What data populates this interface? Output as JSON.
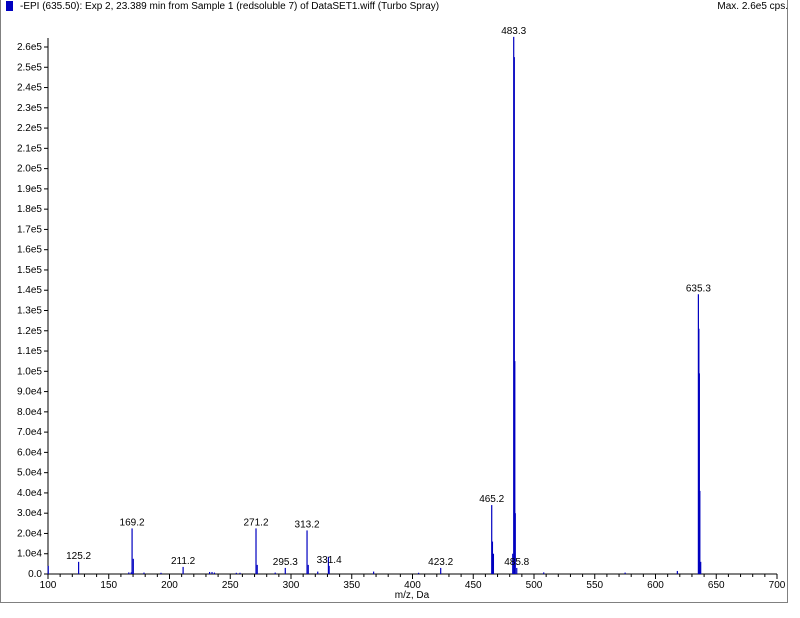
{
  "header": {
    "title": "-EPI (635.50): Exp 2, 23.389 min from Sample 1 (redsoluble 7) of DataSET1.wiff (Turbo Spray)",
    "max_label": "Max. 2.6e5 cps.",
    "series_color": "#0000c0"
  },
  "chart_data": {
    "type": "bar",
    "xlabel": "m/z, Da",
    "ylabel": "",
    "xlim": [
      100,
      700
    ],
    "ylim": [
      0,
      260000
    ],
    "xticks": [
      100,
      150,
      200,
      250,
      300,
      350,
      400,
      450,
      500,
      550,
      600,
      650,
      700
    ],
    "yticks": [
      0,
      10000,
      20000,
      30000,
      40000,
      50000,
      60000,
      70000,
      80000,
      90000,
      100000,
      110000,
      120000,
      130000,
      140000,
      150000,
      160000,
      170000,
      180000,
      190000,
      200000,
      210000,
      220000,
      230000,
      240000,
      250000,
      260000
    ],
    "ytick_labels": [
      "0.0",
      "1.0e4",
      "2.0e4",
      "3.0e4",
      "4.0e4",
      "5.0e4",
      "6.0e4",
      "7.0e4",
      "8.0e4",
      "9.0e4",
      "1.0e5",
      "1.1e5",
      "1.2e5",
      "1.3e5",
      "1.4e5",
      "1.5e5",
      "1.6e5",
      "1.7e5",
      "1.8e5",
      "1.9e5",
      "2.0e5",
      "2.1e5",
      "2.2e5",
      "2.3e5",
      "2.4e5",
      "2.5e5",
      "2.6e5"
    ],
    "color": "#0000c0",
    "peaks": [
      {
        "mz": 100.2,
        "i": 4000
      },
      {
        "mz": 125.2,
        "i": 6000,
        "label": "125.2"
      },
      {
        "mz": 166.5,
        "i": 800
      },
      {
        "mz": 168.5,
        "i": 800
      },
      {
        "mz": 169.2,
        "i": 22500,
        "label": "169.2"
      },
      {
        "mz": 170.2,
        "i": 7500
      },
      {
        "mz": 179,
        "i": 700
      },
      {
        "mz": 193,
        "i": 600
      },
      {
        "mz": 211.2,
        "i": 3500,
        "label": "211.2"
      },
      {
        "mz": 233,
        "i": 1000
      },
      {
        "mz": 235,
        "i": 1000
      },
      {
        "mz": 237,
        "i": 700
      },
      {
        "mz": 255,
        "i": 600
      },
      {
        "mz": 258,
        "i": 600
      },
      {
        "mz": 271.2,
        "i": 22500,
        "label": "271.2"
      },
      {
        "mz": 272.2,
        "i": 4500
      },
      {
        "mz": 287,
        "i": 700
      },
      {
        "mz": 295.3,
        "i": 3000,
        "label": "295.3"
      },
      {
        "mz": 313.2,
        "i": 21500,
        "label": "313.2"
      },
      {
        "mz": 314.2,
        "i": 4500
      },
      {
        "mz": 322,
        "i": 1200
      },
      {
        "mz": 330.8,
        "i": 8500
      },
      {
        "mz": 331.4,
        "i": 4000,
        "label": "331.4"
      },
      {
        "mz": 368,
        "i": 1200
      },
      {
        "mz": 405,
        "i": 600
      },
      {
        "mz": 423.2,
        "i": 3000,
        "label": "423.2"
      },
      {
        "mz": 465.2,
        "i": 34000,
        "label": "465.2"
      },
      {
        "mz": 465.8,
        "i": 16000
      },
      {
        "mz": 466.6,
        "i": 10000
      },
      {
        "mz": 482.5,
        "i": 10000
      },
      {
        "mz": 483.3,
        "i": 265000,
        "label": "483.3"
      },
      {
        "mz": 483.8,
        "i": 255000
      },
      {
        "mz": 484.2,
        "i": 105000
      },
      {
        "mz": 484.6,
        "i": 30000
      },
      {
        "mz": 485.8,
        "i": 3000,
        "label": "485.8"
      },
      {
        "mz": 508,
        "i": 800
      },
      {
        "mz": 575,
        "i": 700
      },
      {
        "mz": 618,
        "i": 1500
      },
      {
        "mz": 635.3,
        "i": 138000,
        "label": "635.3"
      },
      {
        "mz": 635.7,
        "i": 121000
      },
      {
        "mz": 636.1,
        "i": 99000
      },
      {
        "mz": 636.5,
        "i": 41000
      },
      {
        "mz": 637.2,
        "i": 6000
      }
    ]
  }
}
